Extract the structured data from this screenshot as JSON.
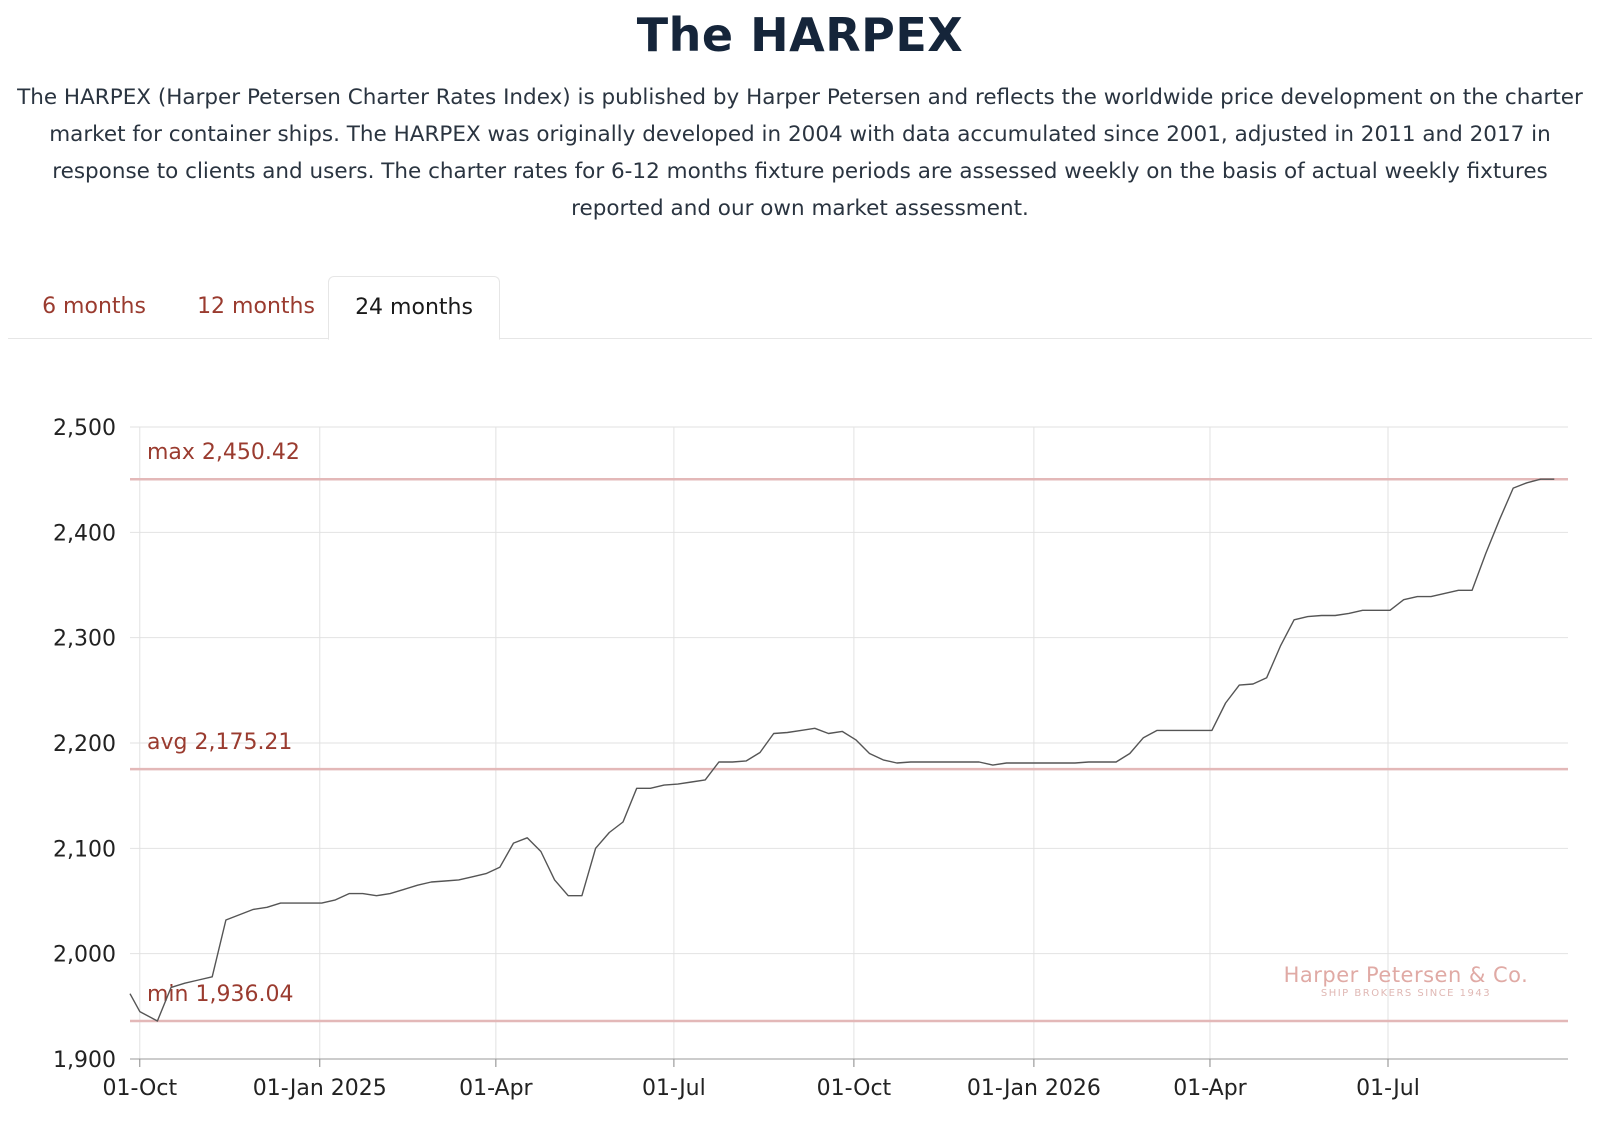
{
  "header": {
    "title": "The HARPEX",
    "description": "The HARPEX (Harper Petersen Charter Rates Index) is published by Harper Petersen and reflects the worldwide price development on the charter market for container ships. The HARPEX was originally developed in 2004 with data accumulated since 2001, adjusted in 2011 and 2017 in response to clients and users. The charter rates for 6-12 months fixture periods are assessed weekly on the basis of actual weekly fixtures reported and our own market assessment."
  },
  "tabs": [
    {
      "label": "6 months",
      "active": false
    },
    {
      "label": "12 months",
      "active": false
    },
    {
      "label": "24 months",
      "active": true
    }
  ],
  "colors": {
    "accent": "#9a3b2f",
    "line": "#555555",
    "refline": "#e3b8b8",
    "grid": "#e2e2e2",
    "watermark": "#e0aaa5"
  },
  "watermark": {
    "name": "Harper Petersen & Co.",
    "tagline": "SHIP BROKERS SINCE 1943"
  },
  "chart_data": {
    "type": "line",
    "title": "",
    "xlabel": "",
    "ylabel": "",
    "ylim": [
      1900,
      2500
    ],
    "yticks": [
      1900,
      2000,
      2100,
      2200,
      2300,
      2400,
      2500
    ],
    "xticks": [
      {
        "date": "2024-10-01",
        "label": "01-Oct"
      },
      {
        "date": "2025-01-01",
        "label": "01-Jan 2025"
      },
      {
        "date": "2025-04-01",
        "label": "01-Apr"
      },
      {
        "date": "2025-07-01",
        "label": "01-Jul"
      },
      {
        "date": "2025-10-01",
        "label": "01-Oct"
      },
      {
        "date": "2026-01-01",
        "label": "01-Jan 2026"
      },
      {
        "date": "2026-04-01",
        "label": "01-Apr"
      },
      {
        "date": "2026-07-01",
        "label": "01-Jul"
      }
    ],
    "grid": true,
    "reference_lines": [
      {
        "label": "max 2,450.42",
        "value": 2450.42
      },
      {
        "label": "avg 2,175.21",
        "value": 2175.21
      },
      {
        "label": "min 1,936.04",
        "value": 1936.04
      }
    ],
    "series": [
      {
        "points": [
          [
            "2024-09-26",
            1962
          ],
          [
            "2024-10-01",
            1945
          ],
          [
            "2024-10-10",
            1936.04
          ],
          [
            "2024-10-17",
            1968
          ],
          [
            "2024-10-24",
            1972
          ],
          [
            "2024-10-31",
            1975
          ],
          [
            "2024-11-07",
            1978
          ],
          [
            "2024-11-14",
            2032
          ],
          [
            "2024-11-28",
            2042
          ],
          [
            "2024-12-05",
            2044
          ],
          [
            "2024-12-12",
            2048
          ],
          [
            "2024-12-26",
            2048
          ],
          [
            "2025-01-02",
            2048
          ],
          [
            "2025-01-09",
            2051
          ],
          [
            "2025-01-16",
            2057
          ],
          [
            "2025-01-23",
            2057
          ],
          [
            "2025-01-30",
            2055
          ],
          [
            "2025-02-06",
            2057
          ],
          [
            "2025-02-13",
            2061
          ],
          [
            "2025-02-20",
            2065
          ],
          [
            "2025-02-27",
            2068
          ],
          [
            "2025-03-06",
            2069
          ],
          [
            "2025-03-13",
            2070
          ],
          [
            "2025-03-20",
            2073
          ],
          [
            "2025-03-27",
            2076
          ],
          [
            "2025-04-03",
            2082
          ],
          [
            "2025-04-10",
            2105
          ],
          [
            "2025-04-17",
            2110
          ],
          [
            "2025-04-24",
            2097
          ],
          [
            "2025-05-01",
            2070
          ],
          [
            "2025-05-08",
            2055
          ],
          [
            "2025-05-15",
            2055
          ],
          [
            "2025-05-22",
            2100
          ],
          [
            "2025-05-29",
            2115
          ],
          [
            "2025-06-05",
            2125
          ],
          [
            "2025-06-12",
            2157
          ],
          [
            "2025-06-19",
            2157
          ],
          [
            "2025-06-26",
            2160
          ],
          [
            "2025-07-03",
            2161
          ],
          [
            "2025-07-10",
            2163
          ],
          [
            "2025-07-17",
            2165
          ],
          [
            "2025-07-24",
            2182
          ],
          [
            "2025-07-31",
            2182
          ],
          [
            "2025-08-07",
            2183
          ],
          [
            "2025-08-14",
            2191
          ],
          [
            "2025-08-21",
            2209
          ],
          [
            "2025-08-28",
            2210
          ],
          [
            "2025-09-04",
            2212
          ],
          [
            "2025-09-11",
            2214
          ],
          [
            "2025-09-18",
            2209
          ],
          [
            "2025-09-25",
            2211
          ],
          [
            "2025-10-02",
            2203
          ],
          [
            "2025-10-09",
            2190
          ],
          [
            "2025-10-16",
            2184
          ],
          [
            "2025-10-23",
            2181
          ],
          [
            "2025-10-30",
            2182
          ],
          [
            "2025-11-06",
            2182
          ],
          [
            "2025-11-13",
            2182
          ],
          [
            "2025-11-20",
            2182
          ],
          [
            "2025-11-27",
            2182
          ],
          [
            "2025-12-04",
            2182
          ],
          [
            "2025-12-11",
            2179
          ],
          [
            "2025-12-18",
            2181
          ],
          [
            "2025-12-25",
            2181
          ],
          [
            "2026-01-01",
            2181
          ],
          [
            "2026-01-08",
            2181
          ],
          [
            "2026-01-15",
            2181
          ],
          [
            "2026-01-22",
            2181
          ],
          [
            "2026-01-29",
            2182
          ],
          [
            "2026-02-05",
            2182
          ],
          [
            "2026-02-12",
            2182
          ],
          [
            "2026-02-19",
            2190
          ],
          [
            "2026-02-26",
            2205
          ],
          [
            "2026-03-05",
            2212
          ],
          [
            "2026-03-12",
            2212
          ],
          [
            "2026-03-19",
            2212
          ],
          [
            "2026-03-26",
            2212
          ],
          [
            "2026-04-02",
            2212
          ],
          [
            "2026-04-09",
            2238
          ],
          [
            "2026-04-16",
            2255
          ],
          [
            "2026-04-23",
            2256
          ],
          [
            "2026-04-30",
            2262
          ],
          [
            "2026-05-07",
            2292
          ],
          [
            "2026-05-14",
            2317
          ],
          [
            "2026-05-21",
            2320
          ],
          [
            "2026-05-28",
            2321
          ],
          [
            "2026-06-04",
            2321
          ],
          [
            "2026-06-11",
            2323
          ],
          [
            "2026-06-18",
            2326
          ],
          [
            "2026-06-25",
            2326
          ],
          [
            "2026-07-02",
            2326
          ],
          [
            "2026-07-09",
            2336
          ],
          [
            "2026-07-16",
            2339
          ],
          [
            "2026-07-23",
            2339
          ],
          [
            "2026-07-30",
            2342
          ],
          [
            "2026-08-06",
            2345
          ],
          [
            "2026-08-13",
            2345
          ],
          [
            "2026-08-20",
            2380
          ],
          [
            "2026-08-27",
            2412
          ],
          [
            "2026-09-03",
            2442
          ],
          [
            "2026-09-10",
            2447
          ],
          [
            "2026-09-17",
            2450.42
          ],
          [
            "2026-09-24",
            2450.42
          ]
        ]
      }
    ]
  }
}
